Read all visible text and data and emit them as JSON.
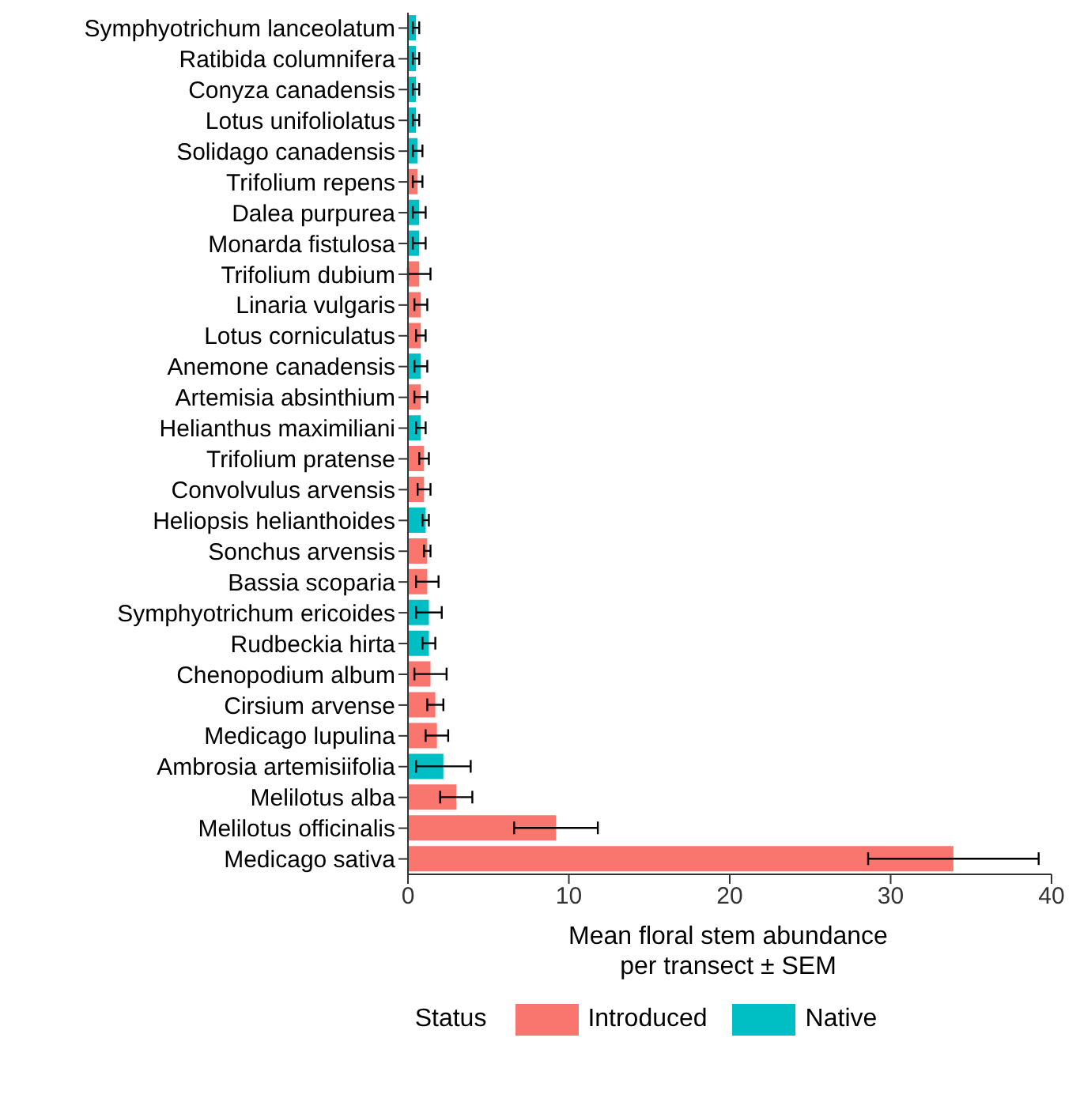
{
  "chart_data": {
    "type": "bar",
    "orientation": "horizontal",
    "stacked": true,
    "xlabel": "Mean floral stem abundance per transect ± SEM",
    "legend_title": "Status",
    "legend": "bottom",
    "grid": false,
    "categories": [
      "Symphyotrichum lanceolatum",
      "Ratibida columnifera",
      "Conyza canadensis",
      "Lotus unifoliolatus",
      "Solidago canadensis",
      "Trifolium repens",
      "Dalea purpurea",
      "Monarda fistulosa",
      "Trifolium dubium",
      "Linaria vulgaris",
      "Lotus corniculatus",
      "Anemone canadensis",
      "Artemisia absinthium",
      "Helianthus maximiliani",
      "Trifolium pratense",
      "Convolvulus arvensis",
      "Heliopsis helianthoides",
      "Sonchus arvensis",
      "Bassia scoparia",
      "Symphyotrichum ericoides",
      "Rudbeckia hirta",
      "Chenopodium album",
      "Cirsium arvense",
      "Medicago lupulina",
      "Ambrosia artemisiifolia",
      "Melilotus alba",
      "Melilotus officinalis",
      "Medicago sativa"
    ],
    "xlim": [
      0,
      40
    ],
    "xticks": [
      0,
      10,
      20,
      30,
      40
    ],
    "series": [
      {
        "name": "Introduced",
        "color": "#f8766d",
        "values": [
          null,
          null,
          null,
          null,
          null,
          0.6,
          null,
          null,
          0.7,
          0.8,
          0.8,
          null,
          0.8,
          null,
          1.0,
          1.0,
          null,
          1.2,
          1.2,
          null,
          null,
          1.4,
          1.7,
          1.8,
          null,
          3.0,
          9.2,
          33.9
        ],
        "errors": [
          null,
          null,
          null,
          null,
          null,
          0.3,
          null,
          null,
          0.7,
          0.4,
          0.3,
          null,
          0.4,
          null,
          0.3,
          0.4,
          null,
          0.2,
          0.7,
          null,
          null,
          1.0,
          0.5,
          0.7,
          null,
          1.0,
          2.6,
          5.3
        ]
      },
      {
        "name": "Native",
        "color": "#00bfc4",
        "values": [
          0.5,
          0.5,
          0.5,
          0.5,
          0.6,
          null,
          0.7,
          0.7,
          null,
          null,
          null,
          0.8,
          null,
          0.8,
          null,
          null,
          1.1,
          null,
          null,
          1.3,
          1.3,
          null,
          null,
          null,
          2.2,
          null,
          null,
          null
        ],
        "errors": [
          0.2,
          0.2,
          0.2,
          0.2,
          0.3,
          null,
          0.4,
          0.4,
          null,
          null,
          null,
          0.4,
          null,
          0.3,
          null,
          null,
          0.2,
          null,
          null,
          0.8,
          0.4,
          null,
          null,
          null,
          1.7,
          null,
          null,
          null
        ]
      }
    ]
  }
}
